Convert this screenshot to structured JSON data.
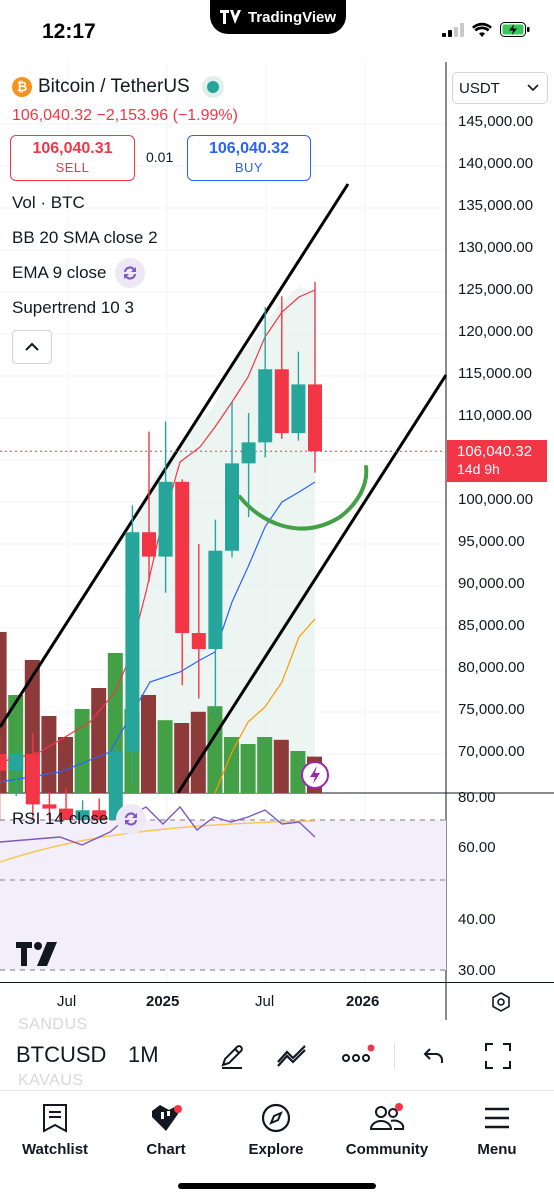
{
  "status_bar": {
    "time": "12:17",
    "app_badge": "TradingView"
  },
  "symbol": {
    "name": "Bitcoin / TetherUS",
    "logo": "₿",
    "market_status_color": "#26a69a"
  },
  "quote": {
    "price": "106,040.32",
    "change": "−2,153.96",
    "change_pct": "(−1.99%)"
  },
  "trade": {
    "sell_price": "106,040.31",
    "sell_label": "SELL",
    "spread": "0.01",
    "buy_price": "106,040.32",
    "buy_label": "BUY"
  },
  "indicators": [
    {
      "label": "Vol · BTC"
    },
    {
      "label": "BB 20 SMA close 2"
    },
    {
      "label": "EMA 9 close",
      "icon": "sync-icon"
    },
    {
      "label": "Supertrend 10 3"
    }
  ],
  "currency": "USDT",
  "price_axis": [
    "145,000.00",
    "140,000.00",
    "135,000.00",
    "130,000.00",
    "125,000.00",
    "120,000.00",
    "115,000.00",
    "110,000.00",
    "105,000.00",
    "100,000.00",
    "95,000.00",
    "90,000.00",
    "85,000.00",
    "80,000.00",
    "75,000.00",
    "70,000.00"
  ],
  "last_price_tag": {
    "price": "106,040.32",
    "countdown": "14d 9h"
  },
  "rsi": {
    "label": "RSI 14 close",
    "ticks": [
      "80.00",
      "60.00",
      "40.00",
      "30.00"
    ]
  },
  "time_axis": [
    "Jul",
    "2025",
    "Jul",
    "2026"
  ],
  "toolbar": {
    "ghost_top": "SANDUS",
    "ghost_bottom": "KAVAUS",
    "symbol": "BTCUSD",
    "interval": "1M"
  },
  "tabs": [
    {
      "label": "Watchlist",
      "icon": "watchlist-icon"
    },
    {
      "label": "Chart",
      "icon": "chart-icon"
    },
    {
      "label": "Explore",
      "icon": "compass-icon"
    },
    {
      "label": "Community",
      "icon": "community-icon"
    },
    {
      "label": "Menu",
      "icon": "menu-icon"
    }
  ],
  "colors": {
    "up": "#43a047",
    "up_candle": "#26a69a",
    "down": "#f23645",
    "accent": "#2962ff"
  },
  "chart_data": {
    "type": "candlestick",
    "interval": "1M",
    "ylim": [
      67000,
      148000
    ],
    "series": [
      {
        "name": "BTCUSDT",
        "candles": [
          {
            "o": 70000,
            "h": 72000,
            "l": 62000,
            "c": 68000
          },
          {
            "o": 68000,
            "h": 70500,
            "l": 65000,
            "c": 70000
          },
          {
            "o": 70000,
            "h": 72500,
            "l": 58000,
            "c": 64000
          },
          {
            "o": 64000,
            "h": 65500,
            "l": 58000,
            "c": 63500
          },
          {
            "o": 63500,
            "h": 66000,
            "l": 52500,
            "c": 59000
          },
          {
            "o": 59000,
            "h": 64500,
            "l": 57000,
            "c": 63300
          },
          {
            "o": 63300,
            "h": 64700,
            "l": 58900,
            "c": 61100
          },
          {
            "o": 61100,
            "h": 71000,
            "l": 59000,
            "c": 70300
          },
          {
            "o": 70300,
            "h": 99600,
            "l": 66500,
            "c": 96400
          },
          {
            "o": 96400,
            "h": 108400,
            "l": 90500,
            "c": 93500
          },
          {
            "o": 93500,
            "h": 109600,
            "l": 89200,
            "c": 102400
          },
          {
            "o": 102400,
            "h": 102700,
            "l": 78200,
            "c": 84400
          },
          {
            "o": 84400,
            "h": 95000,
            "l": 76600,
            "c": 82500
          },
          {
            "o": 82500,
            "h": 97900,
            "l": 74500,
            "c": 94200
          },
          {
            "o": 94200,
            "h": 111900,
            "l": 93400,
            "c": 104600
          },
          {
            "o": 104600,
            "h": 110600,
            "l": 98200,
            "c": 107100
          },
          {
            "o": 107100,
            "h": 123200,
            "l": 105300,
            "c": 115800
          },
          {
            "o": 115800,
            "h": 124500,
            "l": 107500,
            "c": 108200
          },
          {
            "o": 108200,
            "h": 117900,
            "l": 107300,
            "c": 114000
          },
          {
            "o": 114000,
            "h": 126200,
            "l": 103500,
            "c": 106040
          }
        ]
      }
    ]
  }
}
